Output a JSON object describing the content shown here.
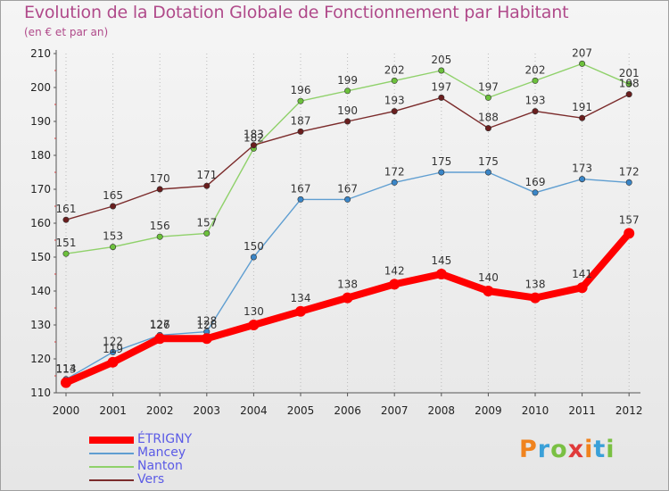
{
  "header": {
    "title": "Evolution de la Dotation Globale de Fonctionnement par Habitant",
    "subtitle": "(en € et par an)"
  },
  "logo": {
    "text": "Proxiti",
    "colors": [
      "#f0831e",
      "#3aa0d8",
      "#7ac043",
      "#e03a3a",
      "#f0831e",
      "#3aa0d8",
      "#7ac043"
    ]
  },
  "chart_data": {
    "type": "line",
    "title": "Evolution de la Dotation Globale de Fonctionnement par Habitant",
    "subtitle": "(en € et par an)",
    "x": [
      "2000",
      "2001",
      "2002",
      "2003",
      "2004",
      "2005",
      "2006",
      "2007",
      "2008",
      "2009",
      "2010",
      "2011",
      "2012"
    ],
    "ylim": [
      110,
      210
    ],
    "yticks": [
      110,
      120,
      130,
      140,
      150,
      160,
      170,
      180,
      190,
      200,
      210
    ],
    "grid": "dotted-vertical",
    "legend": "bottom-left",
    "series": [
      {
        "name": "ÉTRIGNY",
        "color": "#ff0000",
        "marker": "#ff0000",
        "width": "thick",
        "values": [
          113,
          119,
          126,
          126,
          130,
          134,
          138,
          142,
          145,
          140,
          138,
          141,
          157
        ]
      },
      {
        "name": "Mancey",
        "color": "#5f9ed1",
        "marker": "#3a86c8",
        "width": "thin",
        "values": [
          114,
          122,
          127,
          128,
          150,
          167,
          167,
          172,
          175,
          175,
          169,
          173,
          172
        ]
      },
      {
        "name": "Nanton",
        "color": "#8fd16a",
        "marker": "#6cc03c",
        "width": "thin",
        "values": [
          151,
          153,
          156,
          157,
          182,
          196,
          199,
          202,
          205,
          197,
          202,
          207,
          201
        ]
      },
      {
        "name": "Vers",
        "color": "#7b2b2b",
        "marker": "#6a1e1e",
        "width": "thin",
        "values": [
          161,
          165,
          170,
          171,
          183,
          187,
          190,
          193,
          197,
          188,
          193,
          191,
          198
        ]
      }
    ]
  }
}
